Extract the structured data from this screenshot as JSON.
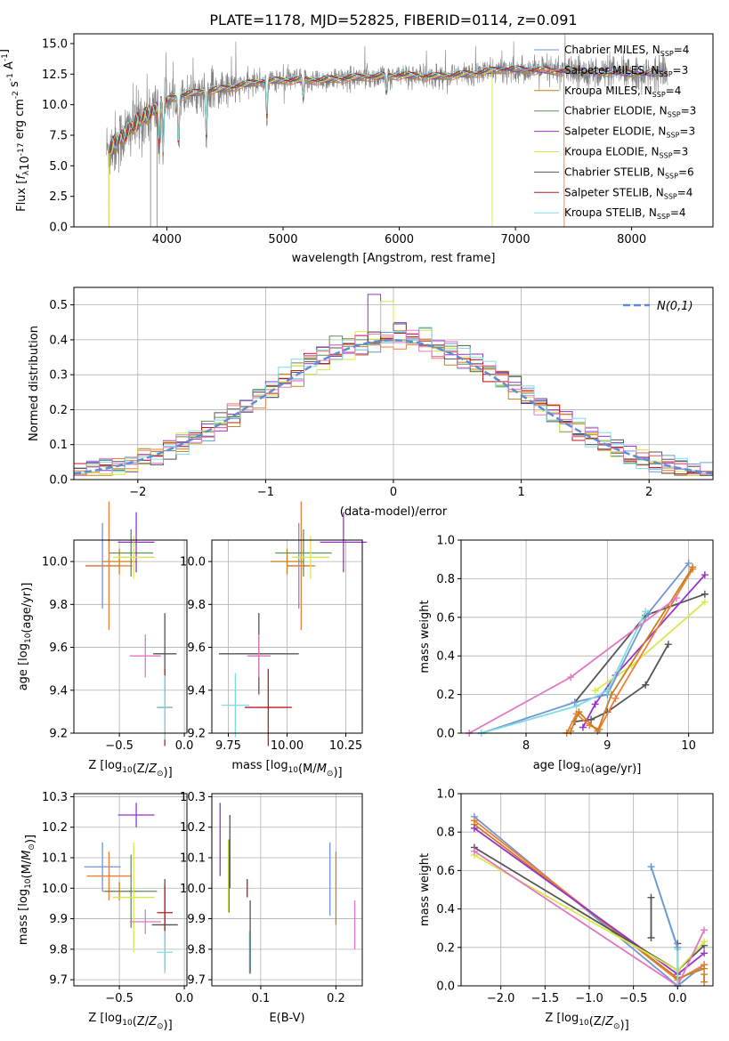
{
  "colors": {
    "Chabrier MILES": "#6f96d8",
    "Salpeter MILES": "#f07d38",
    "Kroupa MILES": "#c8801e",
    "Chabrier ELODIE": "#5f8f5a",
    "Salpeter ELODIE": "#9932cc",
    "Kroupa ELODIE": "#d8e84a",
    "Chabrier STELIB": "#555555",
    "Salpeter STELIB": "#c01a1a",
    "Kroupa STELIB": "#7fdde0",
    "data": "#808080",
    "pink": "#e377c2",
    "gaussian": "#5b8ed6"
  },
  "chart_data": [
    {
      "type": "line",
      "title": "PLATE=1178, MJD=52825, FIBERID=0114, z=0.091",
      "xlabel": "wavelength [Angstrom, rest frame]",
      "ylabel": "Flux [f_λ10^-17 erg cm^-2 s^-1 A^-1]",
      "xlim": [
        3200,
        8700
      ],
      "ylim": [
        0,
        15.8
      ],
      "xticks": [
        "4000",
        "5000",
        "6000",
        "7000",
        "8000"
      ],
      "yticks": [
        "0.0",
        "2.5",
        "5.0",
        "7.5",
        "10.0",
        "12.5",
        "15.0"
      ],
      "legend_position": "upper right",
      "legend": [
        {
          "name": "Chabrier MILES",
          "sub": "SSP",
          "n": "4"
        },
        {
          "name": "Salpeter MILES",
          "sub": "SSP",
          "n": "3"
        },
        {
          "name": "Kroupa MILES",
          "sub": "SSP",
          "n": "4"
        },
        {
          "name": "Chabrier ELODIE",
          "sub": "SSP",
          "n": "3"
        },
        {
          "name": "Salpeter ELODIE",
          "sub": "SSP",
          "n": "3"
        },
        {
          "name": "Kroupa ELODIE",
          "sub": "SSP",
          "n": "3"
        },
        {
          "name": "Chabrier STELIB",
          "sub": "SSP",
          "n": "6"
        },
        {
          "name": "Salpeter STELIB",
          "sub": "SSP",
          "n": "4"
        },
        {
          "name": "Kroupa STELIB",
          "sub": "SSP",
          "n": "4"
        }
      ],
      "continuum": [
        [
          3500,
          6.3
        ],
        [
          3600,
          7.2
        ],
        [
          3700,
          8.2
        ],
        [
          3800,
          9.0
        ],
        [
          3900,
          9.6
        ],
        [
          4000,
          10.4
        ],
        [
          4200,
          10.9
        ],
        [
          4500,
          11.3
        ],
        [
          4800,
          11.9
        ],
        [
          5000,
          12.0
        ],
        [
          5300,
          12.0
        ],
        [
          5600,
          12.2
        ],
        [
          6000,
          12.4
        ],
        [
          6300,
          12.3
        ],
        [
          6600,
          12.5
        ],
        [
          6900,
          12.9
        ],
        [
          7200,
          12.8
        ],
        [
          7500,
          12.7
        ],
        [
          7800,
          12.6
        ],
        [
          8100,
          12.5
        ],
        [
          8400,
          12.7
        ]
      ],
      "absorption_lines": [
        [
          3933,
          6.0
        ],
        [
          3968,
          5.8
        ],
        [
          4101,
          6.5
        ],
        [
          4340,
          7.0
        ],
        [
          4861,
          8.5
        ],
        [
          5175,
          10.3
        ],
        [
          5890,
          10.8
        ]
      ],
      "data_range": [
        3480,
        8310
      ],
      "model_edges": [
        {
          "series": "Salpeter MILES",
          "x": 7420,
          "range": [
            3500,
            7420
          ]
        },
        {
          "series": "Kroupa ELODIE",
          "x": 6800,
          "range": [
            3500,
            6800
          ]
        }
      ]
    },
    {
      "type": "step",
      "xlabel": "(data-model)/error",
      "ylabel": "Normed distribution",
      "xlim": [
        -2.5,
        2.5
      ],
      "ylim": [
        0,
        0.55
      ],
      "xticks": [
        "−2",
        "−1",
        "0",
        "1",
        "2"
      ],
      "yticks": [
        "0.0",
        "0.1",
        "0.2",
        "0.3",
        "0.4",
        "0.5"
      ],
      "legend": "N(0,1)",
      "bin_width": 0.1
    },
    {
      "type": "scatter",
      "xlabel": "Z [log10(Z/Z⊙)]",
      "ylabel": "age  [log10(age/yr)]",
      "xlim": [
        -0.85,
        0.02
      ],
      "ylim": [
        9.2,
        10.1
      ],
      "xticks": [
        "−0.5",
        "0.0"
      ],
      "yticks": [
        "9.2",
        "9.4",
        "9.6",
        "9.8",
        "10.0"
      ],
      "points": [
        {
          "series": "Chabrier MILES",
          "x": -0.63,
          "y": 9.98,
          "xerr": 0.13,
          "yerr": 0.2
        },
        {
          "series": "Salpeter MILES",
          "x": -0.58,
          "y": 9.98,
          "xerr": 0.18,
          "yerr": 0.3
        },
        {
          "series": "Kroupa MILES",
          "x": -0.5,
          "y": 10.0,
          "xerr": 0.13,
          "yerr": 0.06
        },
        {
          "series": "Chabrier ELODIE",
          "x": -0.41,
          "y": 10.04,
          "xerr": 0.17,
          "yerr": 0.11
        },
        {
          "series": "Salpeter ELODIE",
          "x": -0.37,
          "y": 10.09,
          "xerr": 0.14,
          "yerr": 0.14
        },
        {
          "series": "Kroupa ELODIE",
          "x": -0.39,
          "y": 10.02,
          "xerr": 0.16,
          "yerr": 0.1
        },
        {
          "series": "Chabrier STELIB",
          "x": -0.15,
          "y": 9.57,
          "xerr": 0.09,
          "yerr": 0.19
        },
        {
          "series": "Salpeter STELIB",
          "x": -0.15,
          "y": 9.32,
          "xerr": 0.06,
          "yerr": 0.18
        },
        {
          "series": "Kroupa STELIB",
          "x": -0.15,
          "y": 9.32,
          "xerr": 0.06,
          "yerr": 0.15
        },
        {
          "series": "pink",
          "x": -0.3,
          "y": 9.56,
          "xerr": 0.12,
          "yerr": 0.1
        }
      ]
    },
    {
      "type": "scatter",
      "xlabel": "mass [log10(M/M⊙)]",
      "ylabel": "",
      "xlim": [
        9.68,
        10.32
      ],
      "ylim": [
        9.2,
        10.1
      ],
      "xticks": [
        "9.75",
        "10.00",
        "10.25"
      ],
      "yticks": [
        "9.2",
        "9.4",
        "9.6",
        "9.8",
        "10.0"
      ],
      "points": [
        {
          "series": "Chabrier MILES",
          "x": 10.05,
          "y": 9.98,
          "xerr": 0.05,
          "yerr": 0.2
        },
        {
          "series": "Salpeter MILES",
          "x": 10.06,
          "y": 9.98,
          "xerr": 0.06,
          "yerr": 0.3
        },
        {
          "series": "Kroupa MILES",
          "x": 10.0,
          "y": 10.0,
          "xerr": 0.07,
          "yerr": 0.06
        },
        {
          "series": "Chabrier ELODIE",
          "x": 10.07,
          "y": 10.04,
          "xerr": 0.12,
          "yerr": 0.11
        },
        {
          "series": "Salpeter ELODIE",
          "x": 10.24,
          "y": 10.09,
          "xerr": 0.1,
          "yerr": 0.14
        },
        {
          "series": "Kroupa ELODIE",
          "x": 10.1,
          "y": 10.02,
          "xerr": 0.08,
          "yerr": 0.1
        },
        {
          "series": "Chabrier STELIB",
          "x": 9.88,
          "y": 9.57,
          "xerr": 0.17,
          "yerr": 0.19
        },
        {
          "series": "Salpeter STELIB",
          "x": 9.92,
          "y": 9.32,
          "xerr": 0.1,
          "yerr": 0.18
        },
        {
          "series": "Kroupa STELIB",
          "x": 9.78,
          "y": 9.33,
          "xerr": 0.06,
          "yerr": 0.15
        },
        {
          "series": "pink",
          "x": 9.88,
          "y": 9.56,
          "xerr": 0.05,
          "yerr": 0.1
        }
      ]
    },
    {
      "type": "line",
      "xlabel": "age  [log10(age/yr)]",
      "ylabel": "mass weight",
      "xlim": [
        7.2,
        10.3
      ],
      "ylim": [
        0,
        1.0
      ],
      "xticks": [
        "8",
        "9",
        "10"
      ],
      "yticks": [
        "0.0",
        "0.2",
        "0.4",
        "0.6",
        "0.8",
        "1.0"
      ],
      "series": [
        {
          "name": "Chabrier STELIB",
          "points": [
            [
              8.6,
              0.06
            ],
            [
              8.8,
              0.07
            ],
            [
              9.0,
              0.11
            ],
            [
              9.47,
              0.25
            ],
            [
              9.75,
              0.46
            ]
          ]
        },
        {
          "name": "Chabrier STELIB",
          "points": [
            [
              8.6,
              0.16
            ],
            [
              9.47,
              0.61
            ],
            [
              10.2,
              0.72
            ]
          ]
        },
        {
          "name": "Salpeter ELODIE",
          "points": [
            [
              8.7,
              0.03
            ],
            [
              8.85,
              0.15
            ],
            [
              9.1,
              0.3
            ],
            [
              10.2,
              0.82
            ]
          ]
        },
        {
          "name": "Kroupa ELODIE",
          "points": [
            [
              8.85,
              0.22
            ],
            [
              9.3,
              0.35
            ],
            [
              10.2,
              0.68
            ]
          ]
        },
        {
          "name": "Salpeter MILES",
          "points": [
            [
              8.5,
              0.0
            ],
            [
              8.62,
              0.1
            ],
            [
              8.78,
              0.04
            ],
            [
              8.9,
              0.02
            ],
            [
              9.1,
              0.18
            ],
            [
              10.05,
              0.85
            ]
          ]
        },
        {
          "name": "Kroupa MILES",
          "points": [
            [
              8.55,
              0.01
            ],
            [
              8.65,
              0.11
            ],
            [
              8.88,
              0.01
            ],
            [
              9.05,
              0.2
            ],
            [
              10.05,
              0.86
            ]
          ]
        },
        {
          "name": "Chabrier MILES",
          "points": [
            [
              7.45,
              0.0
            ],
            [
              8.6,
              0.16
            ],
            [
              9.0,
              0.2
            ],
            [
              9.5,
              0.62
            ],
            [
              10.0,
              0.88
            ]
          ]
        },
        {
          "name": "Kroupa STELIB",
          "points": [
            [
              7.45,
              0.0
            ],
            [
              8.62,
              0.14
            ],
            [
              9.0,
              0.22
            ],
            [
              9.47,
              0.63
            ]
          ]
        },
        {
          "name": "pink",
          "points": [
            [
              7.3,
              0.0
            ],
            [
              8.55,
              0.29
            ],
            [
              9.85,
              0.7
            ]
          ]
        }
      ]
    },
    {
      "type": "scatter",
      "xlabel": "Z [log10(Z/Z⊙)]",
      "ylabel": "mass [log10(M/M⊙)]",
      "xlim": [
        -0.85,
        0.02
      ],
      "ylim": [
        9.68,
        10.31
      ],
      "xticks": [
        "−0.5",
        "0.0"
      ],
      "yticks": [
        "9.7",
        "9.8",
        "9.9",
        "10.0",
        "10.1",
        "10.2",
        "10.3"
      ],
      "points": [
        {
          "series": "Chabrier MILES",
          "x": -0.63,
          "y": 10.07,
          "xerr": 0.14,
          "yerr": 0.08
        },
        {
          "series": "Salpeter MILES",
          "x": -0.58,
          "y": 10.04,
          "xerr": 0.17,
          "yerr": 0.08
        },
        {
          "series": "Kroupa MILES",
          "x": -0.5,
          "y": 9.99,
          "xerr": 0.13,
          "yerr": 0.03
        },
        {
          "series": "Chabrier ELODIE",
          "x": -0.41,
          "y": 9.99,
          "xerr": 0.2,
          "yerr": 0.12
        },
        {
          "series": "Salpeter ELODIE",
          "x": -0.37,
          "y": 10.24,
          "xerr": 0.14,
          "yerr": 0.04
        },
        {
          "series": "Kroupa ELODIE",
          "x": -0.39,
          "y": 9.97,
          "xerr": 0.16,
          "yerr": 0.18
        },
        {
          "series": "Chabrier STELIB",
          "x": -0.15,
          "y": 9.88,
          "xerr": 0.1,
          "yerr": 0.15
        },
        {
          "series": "Salpeter STELIB",
          "x": -0.15,
          "y": 9.92,
          "xerr": 0.06,
          "yerr": 0.09
        },
        {
          "series": "Kroupa STELIB",
          "x": -0.15,
          "y": 9.79,
          "xerr": 0.06,
          "yerr": 0.07
        },
        {
          "series": "pink",
          "x": -0.3,
          "y": 9.89,
          "xerr": 0.12,
          "yerr": 0.04
        }
      ]
    },
    {
      "type": "scatter",
      "xlabel": "E(B-V)",
      "ylabel": "",
      "xlim": [
        0.035,
        0.235
      ],
      "ylim": [
        9.68,
        10.31
      ],
      "xticks": [
        "0.1",
        "0.2"
      ],
      "yticks": [
        "9.7",
        "9.8",
        "9.9",
        "10.0",
        "10.1",
        "10.2",
        "10.3"
      ],
      "points": [
        {
          "series": "Salpeter ELODIE",
          "x": 0.046,
          "y": 10.16,
          "yerr": 0.12
        },
        {
          "series": "Kroupa ELODIE",
          "x": 0.057,
          "y": 10.04,
          "yerr": 0.12
        },
        {
          "series": "Chabrier ELODIE",
          "x": 0.058,
          "y": 10.04,
          "yerr": 0.12
        },
        {
          "series": "Chabrier STELIB",
          "x": 0.059,
          "y": 10.12,
          "yerr": 0.12
        },
        {
          "series": "Salpeter STELIB",
          "x": 0.082,
          "y": 10.0,
          "yerr": 0.03
        },
        {
          "series": "Kroupa STELIB",
          "x": 0.085,
          "y": 9.79,
          "yerr": 0.07
        },
        {
          "series": "Chabrier STELIB",
          "x": 0.086,
          "y": 9.84,
          "yerr": 0.12
        },
        {
          "series": "Chabrier MILES",
          "x": 0.192,
          "y": 10.03,
          "yerr": 0.12
        },
        {
          "series": "Kroupa MILES",
          "x": 0.2,
          "y": 10.0,
          "yerr": 0.12
        },
        {
          "series": "pink",
          "x": 0.225,
          "y": 9.88,
          "yerr": 0.08
        }
      ]
    },
    {
      "type": "line",
      "xlabel": "Z [log10(Z/Z⊙)]",
      "ylabel": "mass weight",
      "xlim": [
        -2.45,
        0.4
      ],
      "ylim": [
        0,
        1.0
      ],
      "xticks": [
        "−2.0",
        "−1.5",
        "−1.0",
        "−0.5",
        "0.0"
      ],
      "yticks": [
        "0.0",
        "0.2",
        "0.4",
        "0.6",
        "0.8",
        "1.0"
      ],
      "series": [
        {
          "name": "Chabrier MILES",
          "points": [
            [
              -2.3,
              0.88
            ],
            [
              0.0,
              0.0
            ],
            [
              0.3,
              0.11
            ]
          ]
        },
        {
          "name": "Salpeter MILES",
          "points": [
            [
              -2.3,
              0.86
            ],
            [
              0.0,
              0.03
            ],
            [
              0.3,
              0.11
            ]
          ]
        },
        {
          "name": "Kroupa MILES",
          "points": [
            [
              -2.3,
              0.84
            ],
            [
              0.0,
              0.04
            ],
            [
              0.3,
              0.09
            ]
          ]
        },
        {
          "name": "Salpeter ELODIE",
          "points": [
            [
              -2.3,
              0.82
            ],
            [
              0.0,
              0.06
            ],
            [
              0.3,
              0.17
            ]
          ]
        },
        {
          "name": "Chabrier STELIB",
          "points": [
            [
              -2.3,
              0.72
            ],
            [
              0.0,
              0.08
            ],
            [
              0.3,
              0.21
            ]
          ]
        },
        {
          "name": "Kroupa ELODIE",
          "points": [
            [
              -2.3,
              0.68
            ],
            [
              0.0,
              0.08
            ],
            [
              0.3,
              0.23
            ]
          ]
        },
        {
          "name": "pink",
          "points": [
            [
              -2.3,
              0.7
            ],
            [
              0.0,
              0.0
            ],
            [
              0.3,
              0.29
            ]
          ]
        },
        {
          "name": "Chabrier STELIB",
          "points": [
            [
              -0.3,
              0.46
            ],
            [
              -0.3,
              0.25
            ]
          ]
        },
        {
          "name": "Chabrier STELIB",
          "points": [
            [
              0.0,
              0.22
            ],
            [
              0.0,
              0.0
            ]
          ]
        },
        {
          "name": "Kroupa STELIB",
          "points": [
            [
              -0.3,
              0.62
            ],
            [
              0.0,
              0.19
            ],
            [
              0.0,
              0.0
            ]
          ]
        },
        {
          "name": "Chabrier MILES",
          "points": [
            [
              -0.3,
              0.62
            ],
            [
              0.0,
              0.2
            ]
          ]
        },
        {
          "name": "Kroupa MILES",
          "points": [
            [
              0.3,
              0.02
            ],
            [
              0.3,
              0.06
            ]
          ]
        }
      ]
    }
  ]
}
